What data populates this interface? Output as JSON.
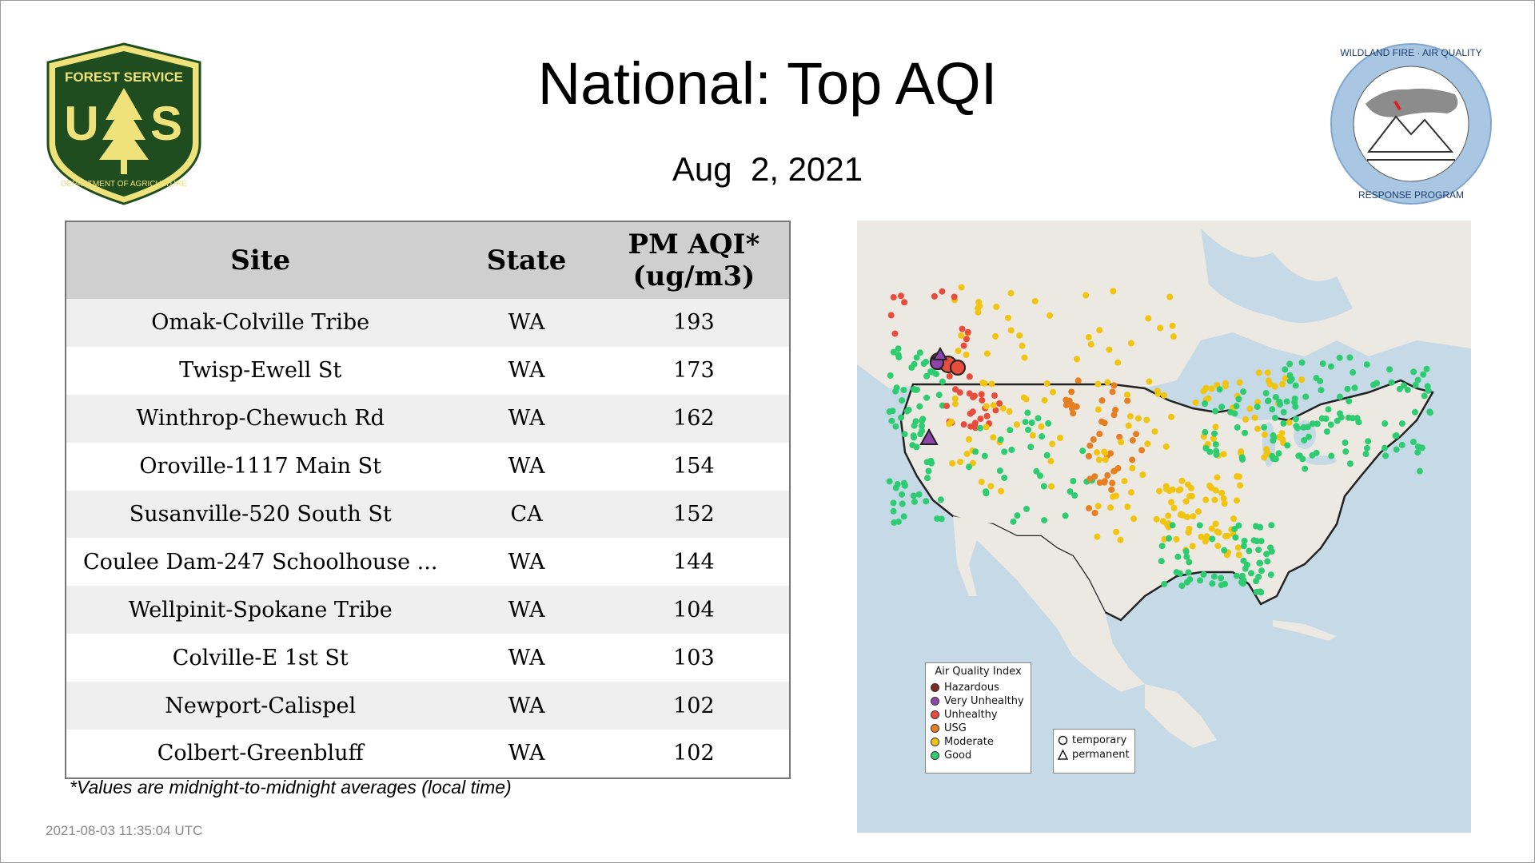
{
  "title": "National: Top AQI",
  "date": "Aug  2, 2021",
  "logos": {
    "left": {
      "text_top": "FOREST SERVICE",
      "letters": "U S",
      "text_bottom": "DEPARTMENT OF AGRICULTURE"
    },
    "right": {
      "text_top": "WILDLAND FIRE · AIR QUALITY",
      "text_bottom": "RESPONSE PROGRAM"
    }
  },
  "table": {
    "headers": {
      "site": "Site",
      "state": "State",
      "aqi_line1": "PM AQI*",
      "aqi_line2": "(ug/m3)"
    },
    "rows": [
      {
        "site": "Omak-Colville Tribe",
        "state": "WA",
        "aqi": "193"
      },
      {
        "site": "Twisp-Ewell St",
        "state": "WA",
        "aqi": "173"
      },
      {
        "site": "Winthrop-Chewuch Rd",
        "state": "WA",
        "aqi": "162"
      },
      {
        "site": "Oroville-1117 Main St",
        "state": "WA",
        "aqi": "154"
      },
      {
        "site": "Susanville-520 South St",
        "state": "CA",
        "aqi": "152"
      },
      {
        "site": "Coulee Dam-247 Schoolhouse ...",
        "state": "WA",
        "aqi": "144"
      },
      {
        "site": "Wellpinit-Spokane Tribe",
        "state": "WA",
        "aqi": "104"
      },
      {
        "site": "Colville-E 1st St",
        "state": "WA",
        "aqi": "103"
      },
      {
        "site": "Newport-Calispel",
        "state": "WA",
        "aqi": "102"
      },
      {
        "site": "Colbert-Greenbluff",
        "state": "WA",
        "aqi": "102"
      }
    ]
  },
  "footnote": "*Values are midnight-to-midnight averages (local time)",
  "timestamp": "2021-08-03 11:35:04 UTC",
  "legend": {
    "title": "Air Quality Index",
    "items": [
      {
        "label": "Hazardous",
        "color": "#7e2a22"
      },
      {
        "label": "Very Unhealthy",
        "color": "#8e44ad"
      },
      {
        "label": "Unhealthy",
        "color": "#e74c3c"
      },
      {
        "label": "USG",
        "color": "#e67e22"
      },
      {
        "label": "Moderate",
        "color": "#f1c40f"
      },
      {
        "label": "Good",
        "color": "#2ecc71"
      }
    ],
    "shapes": [
      {
        "label": "temporary",
        "shape": "circle"
      },
      {
        "label": "permanent",
        "shape": "triangle"
      }
    ]
  },
  "colors": {
    "ocean": "#c6d9e6",
    "land": "#ece8e2",
    "forest_green": "#1f4d1f",
    "forest_gold": "#f0e27a",
    "wfaq_blue": "#a9c7e3"
  }
}
